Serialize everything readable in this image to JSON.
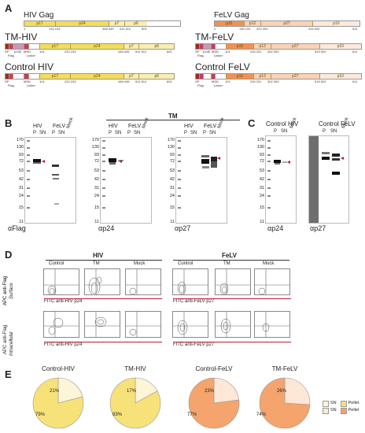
{
  "panels": [
    "A",
    "B",
    "C",
    "D",
    "E"
  ],
  "A": {
    "constructs": [
      {
        "name": "HIV Gag",
        "segs": [
          "p17",
          "p24",
          "p7",
          "p6"
        ],
        "nums": [
          "1",
          "132 133",
          "348 349",
          "411 412",
          "501"
        ]
      },
      {
        "name": "TM-HIV",
        "segs": [
          "p17",
          "p24",
          "p7",
          "p6"
        ],
        "nums": [
          "101",
          "232 233",
          "448 449",
          "511 512",
          "601"
        ],
        "tags": [
          "SP",
          "Flag",
          "p15E",
          "MSD",
          "Linker"
        ]
      },
      {
        "name": "Control HIV",
        "segs": [
          "p17",
          "p24",
          "p7",
          "p6"
        ],
        "nums": [
          "101",
          "232 233",
          "448 449",
          "511 512",
          "601"
        ],
        "tags": [
          "SP",
          "Flag",
          "MSD",
          "Linker"
        ]
      },
      {
        "name": "FeLV Gag",
        "segs": [
          "p15",
          "p12",
          "p27",
          "p10"
        ],
        "nums": [
          "1",
          "130 131",
          "202 203",
          "419 420",
          "511"
        ]
      },
      {
        "name": "TM-FeLV",
        "segs": [
          "p15",
          "p12",
          "p27",
          "p10"
        ],
        "nums": [
          "101",
          "230 231",
          "302 303",
          "519 520",
          "611"
        ],
        "tags": [
          "SP",
          "Flag",
          "p15E",
          "MSD",
          "Linker"
        ]
      },
      {
        "name": "Control FeLV",
        "segs": [
          "p15",
          "p12",
          "p27",
          "p10"
        ],
        "nums": [
          "101",
          "230 231",
          "302 303",
          "519 520",
          "611"
        ],
        "tags": [
          "SP",
          "Flag",
          "MSD",
          "Linker"
        ]
      }
    ]
  },
  "B": {
    "title": "TM",
    "mw": [
      "170",
      "130",
      "93",
      "72",
      "53",
      "42",
      "31",
      "24",
      "15",
      "11"
    ],
    "groups": [
      "HIV",
      "FeLV"
    ],
    "lanes": [
      "P",
      "SN",
      "P",
      "SN",
      "Mock"
    ],
    "antibodies": [
      "αFlag",
      "αp24",
      "αp27"
    ]
  },
  "C": {
    "mw": [
      "170",
      "130",
      "93",
      "72",
      "53",
      "42",
      "31",
      "24",
      "15",
      "11"
    ],
    "groups": [
      "Control HIV",
      "Control FeLV"
    ],
    "lanes": [
      "P",
      "SN",
      "Mock"
    ],
    "antibodies": [
      "αp24",
      "αp27"
    ]
  },
  "D": {
    "groups": [
      "HIV",
      "FeLV"
    ],
    "cols": [
      "Control",
      "TM",
      "Mock"
    ],
    "row_labels": [
      [
        "APC anti-Flag",
        "Surface"
      ],
      [
        "APC anti-Flag",
        "Intracellular"
      ]
    ],
    "xlabels": [
      "FITC anti-HIV p24",
      "FITC anti-FeLV p27"
    ]
  },
  "E": {
    "pies": [
      {
        "title": "Control-HIV",
        "SN": 21,
        "Pellet": 79,
        "sn_label": "21%",
        "pellet_label": "79%"
      },
      {
        "title": "TM-HIV",
        "SN": 17,
        "Pellet": 83,
        "sn_label": "17%",
        "pellet_label": "83%"
      },
      {
        "title": "Control-FeLV",
        "SN": 23,
        "Pellet": 77,
        "sn_label": "23%",
        "pellet_label": "77%"
      },
      {
        "title": "TM-FeLV",
        "SN": 26,
        "Pellet": 74,
        "sn_label": "26%",
        "pellet_label": "74%"
      }
    ],
    "legend": {
      "sn": "SN",
      "pellet": "Pellet",
      "sn_color_hiv": "#fdf5d8",
      "pellet_color_hiv": "#f7e27a",
      "sn_color_felv": "#fde7d6",
      "pellet_color_felv": "#f4a46c"
    }
  },
  "colors": {
    "hiv_fill": "#f4dc5c",
    "hiv_light": "#faeeb0",
    "felv_fill": "#f29152",
    "felv_light": "#fad2b8",
    "sp": "#9b2d20",
    "flag": "#c53b6b",
    "p15e": "#c79bb3",
    "arrow": "#c0163a"
  }
}
